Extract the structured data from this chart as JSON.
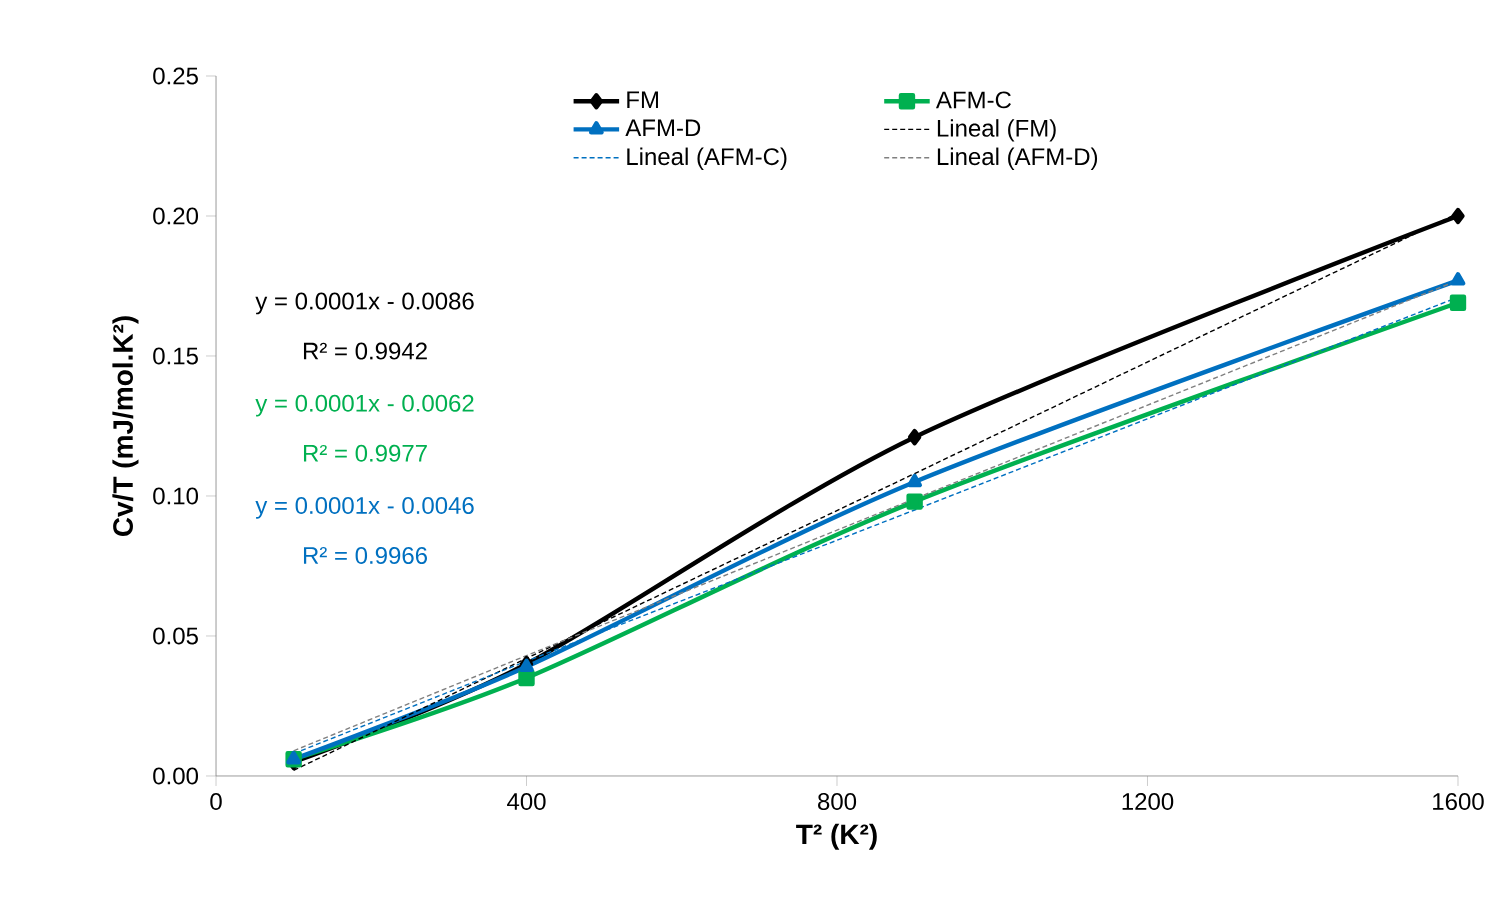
{
  "chart_data": {
    "type": "line",
    "xlabel": "T² (K²)",
    "ylabel": "Cv/T (mJ/mol.K²)",
    "xlim": [
      0,
      1600
    ],
    "xticks": [
      0,
      400,
      800,
      1200,
      1600
    ],
    "ylim": [
      0,
      0.25
    ],
    "yticks": [
      {
        "value": 0,
        "label": "0.00"
      },
      {
        "value": 0.05,
        "label": "0.05"
      },
      {
        "value": 0.1,
        "label": "0.10"
      },
      {
        "value": 0.15,
        "label": "0.15"
      },
      {
        "value": 0.2,
        "label": "0.20"
      },
      {
        "value": 0.25,
        "label": "0.25"
      }
    ],
    "x": [
      100,
      400,
      900,
      1600
    ],
    "series": [
      {
        "name": "FM",
        "color": "#000000",
        "marker": "diamond",
        "values": [
          0.005,
          0.04,
          0.121,
          0.2
        ]
      },
      {
        "name": "AFM-C",
        "color": "#00b050",
        "marker": "square",
        "values": [
          0.006,
          0.035,
          0.098,
          0.169
        ]
      },
      {
        "name": "AFM-D",
        "color": "#0070c0",
        "marker": "triangle",
        "values": [
          0.006,
          0.039,
          0.105,
          0.177
        ]
      },
      {
        "name": "Lineal (FM)",
        "color": "#000000",
        "marker": "none",
        "line_style": "dashed",
        "values": [
          0.002,
          0.042,
          0.108,
          0.201
        ]
      },
      {
        "name": "Lineal (AFM-C)",
        "color": "#0070c0",
        "marker": "none",
        "line_style": "dashed",
        "values": [
          0.008,
          0.041,
          0.095,
          0.171
        ]
      },
      {
        "name": "Lineal (AFM-D)",
        "color": "#808080",
        "marker": "none",
        "line_style": "dashed",
        "values": [
          0.009,
          0.043,
          0.099,
          0.177
        ]
      }
    ],
    "annotations": [
      "y = 0.0001x - 0.0086",
      "R² = 0.9942",
      "y = 0.0001x - 0.0062",
      "R² = 0.9977",
      "y = 0.0001x - 0.0046",
      "R² = 0.9966"
    ],
    "legend": "top",
    "grid": false
  }
}
